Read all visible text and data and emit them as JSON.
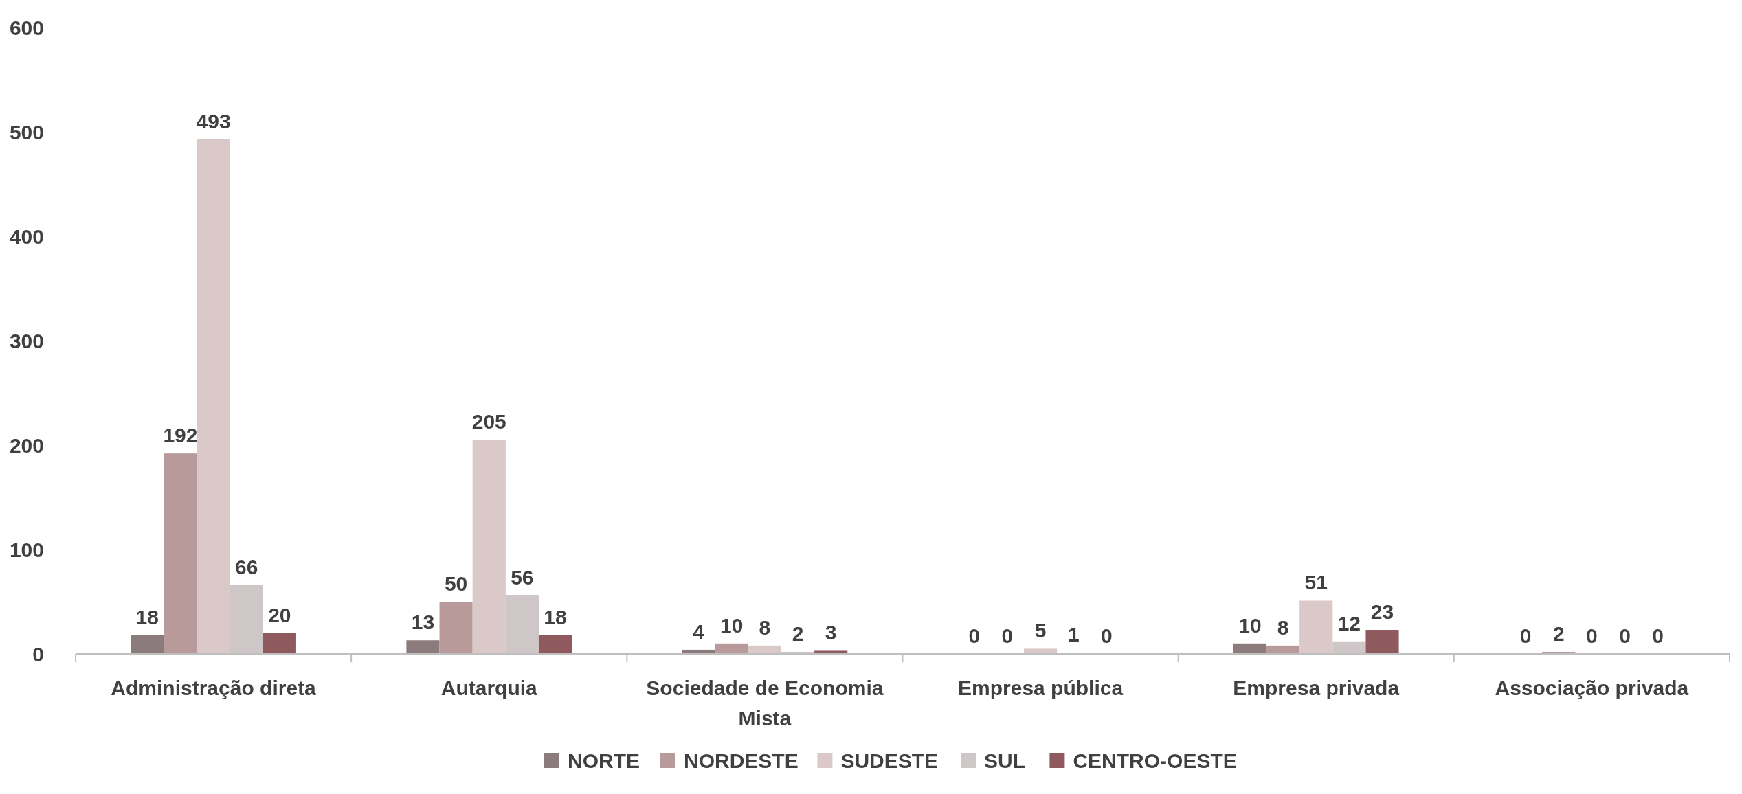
{
  "chart_data": {
    "type": "bar",
    "categories": [
      "Administração direta",
      "Autarquia",
      "Sociedade de Economia Mista",
      "Empresa pública",
      "Empresa privada",
      "Associação privada"
    ],
    "series": [
      {
        "name": "NORTE",
        "color": "#8c7b7c",
        "values": [
          18,
          13,
          4,
          0,
          10,
          0
        ]
      },
      {
        "name": "NORDESTE",
        "color": "#b89a9b",
        "values": [
          192,
          50,
          10,
          0,
          8,
          2
        ]
      },
      {
        "name": "SUDESTE",
        "color": "#dbc8c8",
        "values": [
          493,
          205,
          8,
          5,
          51,
          0
        ]
      },
      {
        "name": "SUL",
        "color": "#cfc6c8",
        "values": [
          66,
          56,
          2,
          1,
          12,
          0
        ]
      },
      {
        "name": "CENTRO-OESTE",
        "color": "#8e5a5e",
        "values": [
          20,
          18,
          3,
          0,
          23,
          0
        ]
      }
    ],
    "ylim": [
      0,
      600
    ],
    "yticks": [
      0,
      100,
      200,
      300,
      400,
      500,
      600
    ],
    "data_labels": true,
    "legend": "bottom",
    "grid": false
  }
}
